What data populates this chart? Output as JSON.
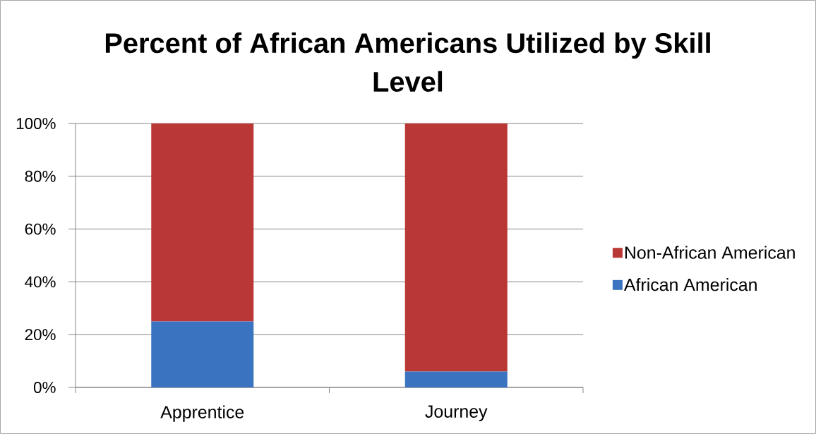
{
  "chart_data": {
    "type": "bar",
    "title": "Percent of African Americans Utilized by Skill Level",
    "categories": [
      "Apprentice",
      "Journey"
    ],
    "series": [
      {
        "name": "African American",
        "color": "#3a73bf",
        "values": [
          25,
          6
        ]
      },
      {
        "name": "Non-African American",
        "color": "#b93734",
        "values": [
          75,
          94
        ]
      }
    ],
    "stacked": true,
    "ylim": [
      0,
      100
    ],
    "yticks": [
      {
        "value": 0,
        "label": "0%"
      },
      {
        "value": 20,
        "label": "20%"
      },
      {
        "value": 40,
        "label": "40%"
      },
      {
        "value": 60,
        "label": "60%"
      },
      {
        "value": 80,
        "label": "80%"
      },
      {
        "value": 100,
        "label": "100%"
      }
    ],
    "grid": "y",
    "legend": "right"
  }
}
